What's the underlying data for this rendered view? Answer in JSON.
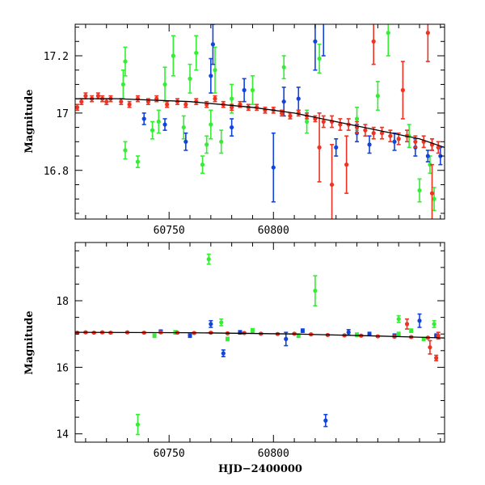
{
  "colors": {
    "green": "#33ee33",
    "blue": "#1144dd",
    "red": "#ee3322",
    "model": "#000000"
  },
  "chart_data": [
    {
      "type": "scatter",
      "xlabel": "",
      "ylabel": "Magnitude",
      "xlim": [
        60705,
        60882
      ],
      "ylim": [
        17.31,
        16.63
      ],
      "x_ticks": [
        60750,
        60800
      ],
      "y_ticks": [
        16.8,
        17,
        17.2
      ],
      "y_tick_labels": [
        "16.8",
        "17",
        "17.2"
      ],
      "model_line": [
        [
          60705,
          17.05
        ],
        [
          60725,
          17.05
        ],
        [
          60760,
          17.04
        ],
        [
          60790,
          17.02
        ],
        [
          60810,
          17.0
        ],
        [
          60830,
          16.97
        ],
        [
          60850,
          16.94
        ],
        [
          60870,
          16.91
        ],
        [
          60882,
          16.88
        ]
      ],
      "series": [
        {
          "color": "green",
          "points": [
            [
              60729,
              16.87,
              0.03
            ],
            [
              60735,
              16.83,
              0.02
            ],
            [
              60728,
              17.1,
              0.05
            ],
            [
              60729,
              17.18,
              0.05
            ],
            [
              60742,
              16.94,
              0.03
            ],
            [
              60745,
              16.97,
              0.04
            ],
            [
              60748,
              17.1,
              0.06
            ],
            [
              60752,
              17.2,
              0.07
            ],
            [
              60757,
              16.95,
              0.04
            ],
            [
              60760,
              17.12,
              0.05
            ],
            [
              60763,
              17.21,
              0.06
            ],
            [
              60766,
              16.82,
              0.03
            ],
            [
              60768,
              16.89,
              0.03
            ],
            [
              60770,
              16.96,
              0.05
            ],
            [
              60772,
              17.15,
              0.08
            ],
            [
              60775,
              16.9,
              0.04
            ],
            [
              60780,
              17.05,
              0.05
            ],
            [
              60790,
              17.08,
              0.05
            ],
            [
              60805,
              17.16,
              0.04
            ],
            [
              60816,
              16.97,
              0.04
            ],
            [
              60822,
              17.19,
              0.05
            ],
            [
              60840,
              16.98,
              0.04
            ],
            [
              60850,
              17.06,
              0.05
            ],
            [
              60865,
              16.92,
              0.04
            ],
            [
              60870,
              16.73,
              0.04
            ],
            [
              60875,
              16.82,
              0.03
            ],
            [
              60877,
              16.7,
              0.04
            ],
            [
              60855,
              17.28,
              0.08
            ]
          ]
        },
        {
          "color": "blue",
          "points": [
            [
              60738,
              16.98,
              0.02
            ],
            [
              60748,
              16.96,
              0.02
            ],
            [
              60758,
              16.9,
              0.03
            ],
            [
              60770,
              17.13,
              0.06
            ],
            [
              60771,
              17.24,
              0.07
            ],
            [
              60780,
              16.95,
              0.03
            ],
            [
              60786,
              17.08,
              0.04
            ],
            [
              60800,
              16.81,
              0.12
            ],
            [
              60805,
              17.04,
              0.05
            ],
            [
              60812,
              17.05,
              0.04
            ],
            [
              60820,
              17.25,
              0.1
            ],
            [
              60824,
              17.32,
              0.12
            ],
            [
              60830,
              16.88,
              0.03
            ],
            [
              60840,
              16.93,
              0.03
            ],
            [
              60846,
              16.89,
              0.03
            ],
            [
              60858,
              16.9,
              0.03
            ],
            [
              60868,
              16.88,
              0.03
            ],
            [
              60874,
              16.85,
              0.02
            ],
            [
              60876,
              16.89,
              0.02
            ],
            [
              60880,
              16.85,
              0.03
            ]
          ]
        },
        {
          "color": "red",
          "points": [
            [
              60706,
              17.02,
              0.01
            ],
            [
              60708,
              17.04,
              0.01
            ],
            [
              60710,
              17.06,
              0.01
            ],
            [
              60713,
              17.05,
              0.01
            ],
            [
              60716,
              17.06,
              0.01
            ],
            [
              60718,
              17.05,
              0.01
            ],
            [
              60720,
              17.04,
              0.01
            ],
            [
              60722,
              17.05,
              0.01
            ],
            [
              60727,
              17.04,
              0.01
            ],
            [
              60731,
              17.03,
              0.01
            ],
            [
              60735,
              17.05,
              0.01
            ],
            [
              60740,
              17.04,
              0.01
            ],
            [
              60744,
              17.05,
              0.01
            ],
            [
              60749,
              17.03,
              0.01
            ],
            [
              60754,
              17.04,
              0.01
            ],
            [
              60758,
              17.03,
              0.01
            ],
            [
              60763,
              17.04,
              0.01
            ],
            [
              60768,
              17.03,
              0.01
            ],
            [
              60772,
              17.05,
              0.01
            ],
            [
              60776,
              17.03,
              0.01
            ],
            [
              60780,
              17.02,
              0.01
            ],
            [
              60784,
              17.03,
              0.01
            ],
            [
              60788,
              17.02,
              0.01
            ],
            [
              60792,
              17.02,
              0.01
            ],
            [
              60796,
              17.01,
              0.01
            ],
            [
              60800,
              17.01,
              0.01
            ],
            [
              60804,
              17.0,
              0.01
            ],
            [
              60808,
              16.99,
              0.01
            ],
            [
              60812,
              17.0,
              0.01
            ],
            [
              60816,
              16.99,
              0.01
            ],
            [
              60820,
              16.98,
              0.01
            ],
            [
              60824,
              16.97,
              0.02
            ],
            [
              60828,
              16.97,
              0.02
            ],
            [
              60832,
              16.96,
              0.02
            ],
            [
              60836,
              16.96,
              0.02
            ],
            [
              60840,
              16.95,
              0.02
            ],
            [
              60844,
              16.94,
              0.02
            ],
            [
              60848,
              16.93,
              0.02
            ],
            [
              60852,
              16.93,
              0.02
            ],
            [
              60856,
              16.92,
              0.02
            ],
            [
              60860,
              16.91,
              0.02
            ],
            [
              60864,
              16.92,
              0.02
            ],
            [
              60868,
              16.9,
              0.02
            ],
            [
              60872,
              16.9,
              0.02
            ],
            [
              60876,
              16.89,
              0.02
            ],
            [
              60879,
              16.88,
              0.02
            ],
            [
              60822,
              16.88,
              0.12
            ],
            [
              60828,
              16.75,
              0.14
            ],
            [
              60835,
              16.82,
              0.1
            ],
            [
              60848,
              17.25,
              0.08
            ],
            [
              60862,
              17.08,
              0.1
            ],
            [
              60874,
              17.28,
              0.1
            ],
            [
              60876,
              16.72,
              0.1
            ]
          ]
        }
      ]
    },
    {
      "type": "scatter",
      "xlabel": "HJD−2400000",
      "ylabel": "Magnitude",
      "xlim": [
        60705,
        60882
      ],
      "ylim": [
        19.75,
        13.75
      ],
      "x_ticks": [
        60750,
        60800
      ],
      "y_ticks": [
        14,
        16,
        18
      ],
      "y_tick_labels": [
        "14",
        "16",
        "18"
      ],
      "model_line": [
        [
          60705,
          17.05
        ],
        [
          60760,
          17.04
        ],
        [
          60810,
          17.0
        ],
        [
          60850,
          16.94
        ],
        [
          60882,
          16.88
        ]
      ],
      "series": [
        {
          "color": "green",
          "points": [
            [
              60735,
              14.28,
              0.3
            ],
            [
              60743,
              16.95,
              0.05
            ],
            [
              60753,
              17.05,
              0.05
            ],
            [
              60769,
              19.25,
              0.15
            ],
            [
              60775,
              17.35,
              0.1
            ],
            [
              60778,
              16.85,
              0.05
            ],
            [
              60790,
              17.1,
              0.06
            ],
            [
              60812,
              16.95,
              0.05
            ],
            [
              60820,
              18.3,
              0.45
            ],
            [
              60840,
              16.98,
              0.05
            ],
            [
              60860,
              17.0,
              0.05
            ],
            [
              60872,
              16.85,
              0.05
            ],
            [
              60877,
              17.3,
              0.1
            ],
            [
              60860,
              17.45,
              0.1
            ],
            [
              60866,
              17.1,
              0.05
            ]
          ]
        },
        {
          "color": "blue",
          "points": [
            [
              60746,
              17.08,
              0.04
            ],
            [
              60760,
              16.95,
              0.05
            ],
            [
              60770,
              17.3,
              0.1
            ],
            [
              60776,
              16.42,
              0.1
            ],
            [
              60784,
              17.05,
              0.05
            ],
            [
              60806,
              16.85,
              0.2
            ],
            [
              60814,
              17.1,
              0.05
            ],
            [
              60825,
              14.4,
              0.18
            ],
            [
              60836,
              17.05,
              0.08
            ],
            [
              60846,
              17.0,
              0.05
            ],
            [
              60858,
              16.95,
              0.05
            ],
            [
              60870,
              17.4,
              0.2
            ],
            [
              60878,
              16.95,
              0.05
            ]
          ]
        },
        {
          "color": "red",
          "points": [
            [
              60706,
              17.04,
              0.02
            ],
            [
              60710,
              17.05,
              0.02
            ],
            [
              60714,
              17.04,
              0.02
            ],
            [
              60718,
              17.05,
              0.02
            ],
            [
              60722,
              17.04,
              0.02
            ],
            [
              60730,
              17.05,
              0.02
            ],
            [
              60738,
              17.04,
              0.02
            ],
            [
              60746,
              17.05,
              0.02
            ],
            [
              60754,
              17.04,
              0.02
            ],
            [
              60762,
              17.03,
              0.02
            ],
            [
              60770,
              17.04,
              0.02
            ],
            [
              60778,
              17.02,
              0.02
            ],
            [
              60786,
              17.03,
              0.02
            ],
            [
              60794,
              17.01,
              0.02
            ],
            [
              60802,
              17.0,
              0.02
            ],
            [
              60810,
              17.01,
              0.02
            ],
            [
              60818,
              16.99,
              0.02
            ],
            [
              60826,
              16.97,
              0.02
            ],
            [
              60834,
              16.96,
              0.02
            ],
            [
              60842,
              16.95,
              0.02
            ],
            [
              60850,
              16.93,
              0.02
            ],
            [
              60858,
              16.92,
              0.02
            ],
            [
              60866,
              16.91,
              0.02
            ],
            [
              60874,
              16.89,
              0.02
            ],
            [
              60864,
              17.3,
              0.15
            ],
            [
              60875,
              16.6,
              0.2
            ],
            [
              60878,
              16.28,
              0.08
            ],
            [
              60879,
              16.95,
              0.1
            ]
          ]
        }
      ]
    }
  ]
}
